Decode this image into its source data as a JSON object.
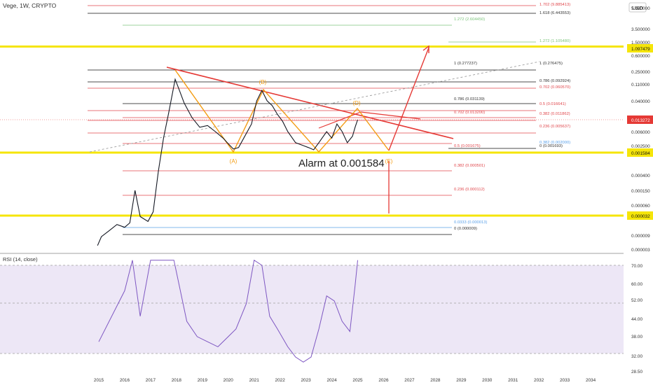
{
  "header": {
    "symbol": "Vege, 1W, CRYPTO",
    "currency": "USD"
  },
  "annotation": {
    "alarm_text": "Alarm at 0.001584"
  },
  "price_axis_labels": [
    "5.900000",
    "3.500000",
    "1.500000",
    "0.600000",
    "0.250000",
    "0.110000",
    "0.040000",
    "0.013272",
    "0.006000",
    "0.002500",
    "0.001584",
    "0.000400",
    "0.000150",
    "0.000060",
    "0.000032",
    "0.000009",
    "0.000003"
  ],
  "rsi_panel": {
    "title": "RSI (14, close)",
    "axis_labels": [
      "70.00",
      "60.00",
      "52.00",
      "44.00",
      "38.00",
      "32.00",
      "28.50"
    ]
  },
  "time_axis_labels": [
    "2015",
    "2016",
    "2017",
    "2018",
    "2019",
    "2020",
    "2021",
    "2022",
    "2023",
    "2024",
    "2025",
    "2026",
    "2027",
    "2028",
    "2029",
    "2030",
    "2031",
    "2032",
    "2033",
    "2034"
  ],
  "fib_labels": [
    {
      "text": "1.702 (9.885413)",
      "color": "#e0474c"
    },
    {
      "text": "1.618 (6.443553)",
      "color": "#333333"
    },
    {
      "text": "1.272 (2.604450)",
      "color": "#7cc47c"
    },
    {
      "text": "1.272 (1.105480)",
      "color": "#7cc47c"
    },
    {
      "text": "1 (0.277237)",
      "color": "#333333"
    },
    {
      "text": "1 (0.276475)",
      "color": "#333333"
    },
    {
      "text": "0.786 (0.092924)",
      "color": "#333333"
    },
    {
      "text": "0.702 (0.060570)",
      "color": "#e0474c"
    },
    {
      "text": "0.786 (0.031139)",
      "color": "#333333"
    },
    {
      "text": "0.5 (0.016641)",
      "color": "#e0474c"
    },
    {
      "text": "0.702 (0.013200)",
      "color": "#e0474c"
    },
    {
      "text": "0.382 (0.011862)",
      "color": "#e0474c"
    },
    {
      "text": "0.236 (0.005637)",
      "color": "#e0474c"
    },
    {
      "text": "0.5 (0.001675)",
      "color": "#e0474c"
    },
    {
      "text": "0.382 (0.002000)",
      "color": "#5aa0e8"
    },
    {
      "text": "0 (0.001693)",
      "color": "#333333"
    },
    {
      "text": "0.382 (0.000501)",
      "color": "#e0474c"
    },
    {
      "text": "0.236 (0.000112)",
      "color": "#e0474c"
    },
    {
      "text": "0.0333 (0.000013)",
      "color": "#5aa0e8"
    },
    {
      "text": "0 (0.000009)",
      "color": "#333333"
    }
  ],
  "wave_labels": [
    "(A)",
    "(B)",
    "(D)",
    "(E)"
  ],
  "chart_data": {
    "type": "line",
    "title": "Vege, 1W, CRYPTO",
    "y_scale": "log",
    "ylim": [
      3e-06,
      12
    ],
    "xlim": [
      2014.7,
      2034.6
    ],
    "current_price": 0.013272,
    "key_levels": [
      1.097479,
      0.001584,
      3.2e-05
    ],
    "series": [
      {
        "values": [
          [
            2014.95,
            4e-06
          ],
          [
            2015.1,
            8e-06
          ],
          [
            2015.4,
            1.2e-05
          ],
          [
            2015.7,
            1.8e-05
          ],
          [
            2016.0,
            1.5e-05
          ],
          [
            2016.2,
            2e-05
          ],
          [
            2016.4,
            0.00015
          ],
          [
            2016.6,
            3e-05
          ],
          [
            2016.9,
            2.2e-05
          ],
          [
            2017.1,
            4e-05
          ],
          [
            2017.3,
            0.0005
          ],
          [
            2017.5,
            0.004
          ],
          [
            2017.7,
            0.02
          ],
          [
            2017.95,
            0.15
          ],
          [
            2018.1,
            0.08
          ],
          [
            2018.3,
            0.035
          ],
          [
            2018.6,
            0.015
          ],
          [
            2018.9,
            0.008
          ],
          [
            2019.2,
            0.009
          ],
          [
            2019.5,
            0.006
          ],
          [
            2019.8,
            0.004
          ],
          [
            2020.0,
            0.0028
          ],
          [
            2020.2,
            0.002
          ],
          [
            2020.4,
            0.0022
          ],
          [
            2020.6,
            0.004
          ],
          [
            2020.9,
            0.01
          ],
          [
            2021.1,
            0.04
          ],
          [
            2021.3,
            0.075
          ],
          [
            2021.5,
            0.04
          ],
          [
            2021.7,
            0.03
          ],
          [
            2021.9,
            0.018
          ],
          [
            2022.1,
            0.012
          ],
          [
            2022.3,
            0.006
          ],
          [
            2022.6,
            0.003
          ],
          [
            2022.9,
            0.0025
          ],
          [
            2023.1,
            0.0022
          ],
          [
            2023.3,
            0.0019
          ],
          [
            2023.5,
            0.003
          ],
          [
            2023.8,
            0.006
          ],
          [
            2024.0,
            0.004
          ],
          [
            2024.2,
            0.01
          ],
          [
            2024.4,
            0.006
          ],
          [
            2024.6,
            0.003
          ],
          [
            2024.8,
            0.0045
          ],
          [
            2024.9,
            0.008
          ],
          [
            2025.0,
            0.013272
          ]
        ]
      },
      {
        "values": [
          [
            2015.0,
            40
          ],
          [
            2016.0,
            60
          ],
          [
            2016.3,
            72
          ],
          [
            2016.6,
            50
          ],
          [
            2017.0,
            72
          ],
          [
            2017.4,
            72
          ],
          [
            2017.9,
            72
          ],
          [
            2018.4,
            48
          ],
          [
            2018.8,
            42
          ],
          [
            2019.2,
            40
          ],
          [
            2019.6,
            38
          ],
          [
            2020.0,
            42
          ],
          [
            2020.3,
            45
          ],
          [
            2020.7,
            55
          ],
          [
            2021.0,
            72
          ],
          [
            2021.3,
            70
          ],
          [
            2021.6,
            50
          ],
          [
            2021.9,
            45
          ],
          [
            2022.3,
            38
          ],
          [
            2022.6,
            34
          ],
          [
            2022.9,
            32
          ],
          [
            2023.2,
            34
          ],
          [
            2023.5,
            45
          ],
          [
            2023.8,
            58
          ],
          [
            2024.1,
            56
          ],
          [
            2024.4,
            48
          ],
          [
            2024.7,
            44
          ],
          [
            2024.9,
            62
          ],
          [
            2025.0,
            72
          ]
        ]
      }
    ]
  }
}
